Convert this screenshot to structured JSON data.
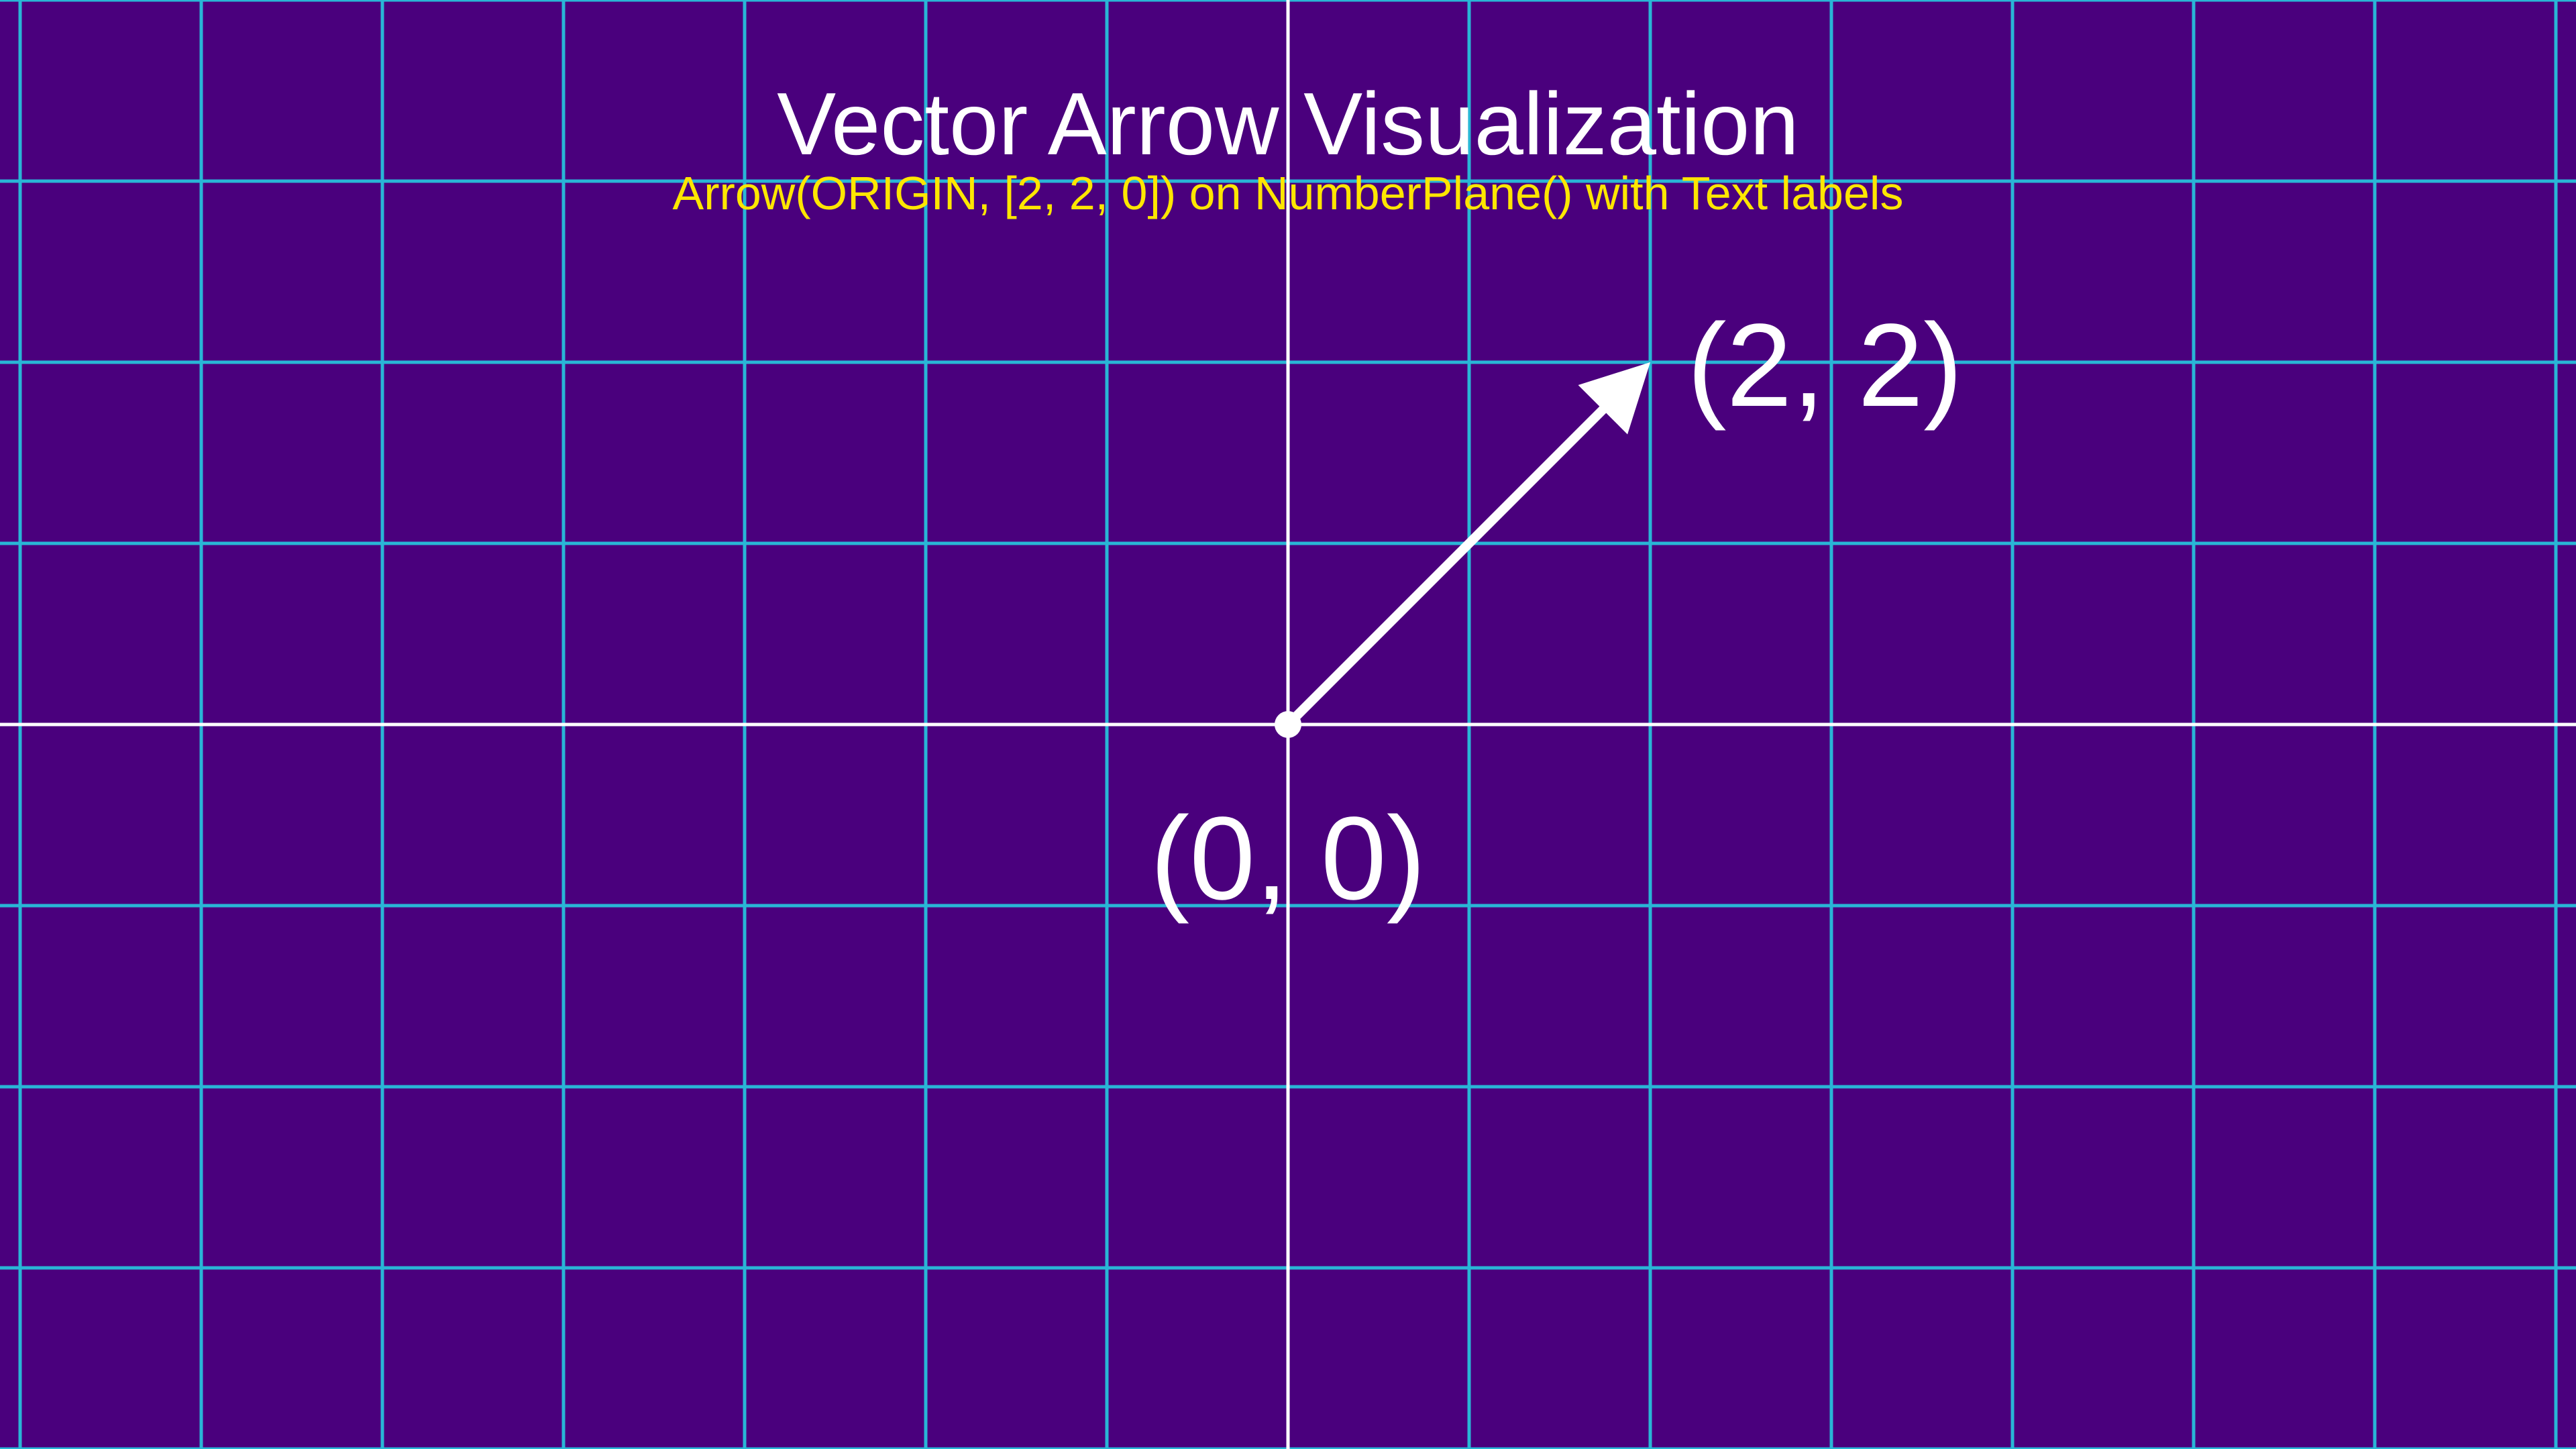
{
  "title": "Vector Arrow Visualization",
  "subtitle": "Arrow(ORIGIN, [2, 2, 0]) on NumberPlane() with Text labels",
  "plane": {
    "x_range": [
      -7,
      7
    ],
    "y_range": [
      -4,
      4
    ],
    "grid_step": 1,
    "grid_color": "#29b6d6",
    "axis_color": "#ffffff",
    "background_color": "#4a007d"
  },
  "vector": {
    "start": [
      0,
      0
    ],
    "end": [
      2,
      2
    ],
    "color": "#ffffff"
  },
  "labels": {
    "origin": "(0, 0)",
    "tip": "(2, 2)"
  },
  "colors": {
    "title": "#ffffff",
    "subtitle": "#ffe600",
    "labels": "#ffffff"
  }
}
